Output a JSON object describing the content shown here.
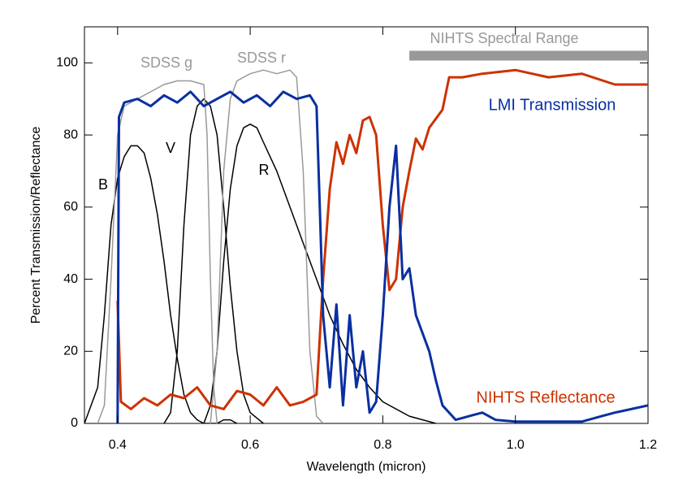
{
  "chart_data": {
    "type": "line",
    "x_label": "Wavelength (micron)",
    "y_label": "Percent Transmission/Reflectance",
    "xlim": [
      0.35,
      1.2
    ],
    "ylim": [
      0,
      110
    ],
    "xticks": [
      0.4,
      0.6,
      0.8,
      {
        "value": 1,
        "label": "1.0"
      },
      1.2
    ],
    "yticks": [
      0,
      20,
      40,
      60,
      80,
      100
    ],
    "series": [
      {
        "name": "B",
        "color": "#000000",
        "x": [
          0.35,
          0.37,
          0.38,
          0.39,
          0.4,
          0.41,
          0.42,
          0.43,
          0.44,
          0.45,
          0.46,
          0.47,
          0.48,
          0.49,
          0.5,
          0.51,
          0.52,
          0.53,
          0.55,
          0.56,
          0.57,
          0.58
        ],
        "values": [
          0,
          10,
          30,
          55,
          68,
          74,
          77,
          77,
          75,
          68,
          58,
          45,
          30,
          18,
          8,
          3,
          1,
          0,
          0,
          1,
          1,
          0
        ]
      },
      {
        "name": "V",
        "color": "#000000",
        "x": [
          0.47,
          0.48,
          0.49,
          0.5,
          0.51,
          0.52,
          0.53,
          0.54,
          0.55,
          0.56,
          0.57,
          0.58,
          0.59,
          0.6,
          0.62
        ],
        "values": [
          0,
          3,
          20,
          55,
          80,
          88,
          90,
          88,
          80,
          60,
          38,
          20,
          8,
          3,
          0
        ]
      },
      {
        "name": "R",
        "color": "#000000",
        "x": [
          0.53,
          0.54,
          0.55,
          0.56,
          0.57,
          0.58,
          0.59,
          0.6,
          0.61,
          0.62,
          0.64,
          0.66,
          0.68,
          0.7,
          0.72,
          0.74,
          0.76,
          0.78,
          0.8,
          0.84,
          0.88
        ],
        "values": [
          0,
          5,
          20,
          45,
          65,
          77,
          82,
          83,
          82,
          78,
          70,
          60,
          50,
          40,
          30,
          22,
          15,
          10,
          6,
          2,
          0
        ]
      },
      {
        "name": "SDSS g",
        "color": "#999999",
        "x": [
          0.37,
          0.38,
          0.39,
          0.4,
          0.41,
          0.43,
          0.45,
          0.47,
          0.49,
          0.51,
          0.53,
          0.535,
          0.54,
          0.545,
          0.55
        ],
        "values": [
          0,
          5,
          40,
          80,
          88,
          90,
          92,
          94,
          95,
          95,
          94,
          80,
          40,
          10,
          0
        ]
      },
      {
        "name": "SDSS r",
        "color": "#999999",
        "x": [
          0.54,
          0.55,
          0.56,
          0.57,
          0.58,
          0.6,
          0.62,
          0.64,
          0.66,
          0.67,
          0.68,
          0.69,
          0.7,
          0.71
        ],
        "values": [
          0,
          20,
          70,
          90,
          95,
          97,
          98,
          97,
          98,
          96,
          70,
          20,
          2,
          0
        ]
      },
      {
        "name": "NIHTS Reflectance",
        "color": "#cc3300",
        "x": [
          0.4,
          0.405,
          0.42,
          0.44,
          0.46,
          0.48,
          0.5,
          0.52,
          0.54,
          0.56,
          0.58,
          0.6,
          0.62,
          0.64,
          0.66,
          0.68,
          0.7,
          0.71,
          0.72,
          0.73,
          0.74,
          0.75,
          0.76,
          0.77,
          0.78,
          0.79,
          0.8,
          0.81,
          0.82,
          0.83,
          0.84,
          0.85,
          0.86,
          0.87,
          0.89,
          0.9,
          0.92,
          0.95,
          1.0,
          1.05,
          1.1,
          1.15,
          1.2
        ],
        "values": [
          34,
          6,
          4,
          7,
          5,
          8,
          7,
          10,
          5,
          4,
          9,
          8,
          5,
          10,
          5,
          6,
          8,
          40,
          65,
          78,
          72,
          80,
          75,
          84,
          85,
          80,
          55,
          37,
          40,
          60,
          70,
          79,
          76,
          82,
          87,
          96,
          96,
          97,
          98,
          96,
          97,
          94,
          94
        ]
      },
      {
        "name": "LMI Transmission",
        "color": "#0a2fa0",
        "x": [
          0.4,
          0.402,
          0.41,
          0.43,
          0.45,
          0.47,
          0.49,
          0.51,
          0.53,
          0.55,
          0.57,
          0.59,
          0.61,
          0.63,
          0.65,
          0.67,
          0.69,
          0.7,
          0.705,
          0.71,
          0.72,
          0.73,
          0.74,
          0.75,
          0.76,
          0.77,
          0.78,
          0.79,
          0.8,
          0.81,
          0.82,
          0.83,
          0.84,
          0.85,
          0.87,
          0.88,
          0.89,
          0.91,
          0.93,
          0.95,
          0.97,
          1.0,
          1.05,
          1.1,
          1.13,
          1.15,
          1.2
        ],
        "values": [
          0,
          85,
          89,
          90,
          88,
          91,
          89,
          92,
          88,
          90,
          92,
          89,
          91,
          88,
          92,
          90,
          91,
          88,
          60,
          30,
          10,
          33,
          5,
          30,
          10,
          20,
          3,
          6,
          30,
          60,
          77,
          40,
          43,
          30,
          20,
          12,
          5,
          1,
          2,
          3,
          1,
          0.5,
          0.5,
          0.5,
          2,
          3,
          5
        ]
      }
    ],
    "range_bar": {
      "text": "NIHTS Spectral Range",
      "x": [
        0.84,
        1.2
      ],
      "y": 102,
      "color": "#999999"
    }
  }
}
